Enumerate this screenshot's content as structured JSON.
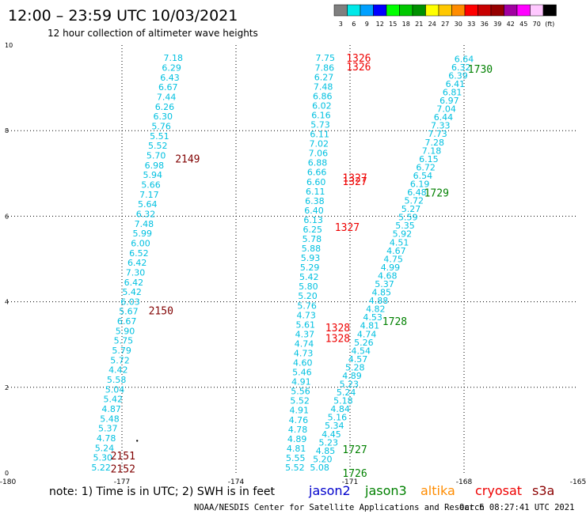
{
  "header": {
    "title": "12:00 – 23:59 UTC 10/03/2021",
    "subtitle": "12 hour collection of altimeter wave heights"
  },
  "colorbar": {
    "unit": "(ft)",
    "bins": [
      {
        "color": "#7f7f7f",
        "label": "3"
      },
      {
        "color": "#00e8e8",
        "label": "6"
      },
      {
        "color": "#00a0ff",
        "label": "9"
      },
      {
        "color": "#0000ff",
        "label": "12"
      },
      {
        "color": "#00ff00",
        "label": "15"
      },
      {
        "color": "#00c800",
        "label": "18"
      },
      {
        "color": "#009000",
        "label": "21"
      },
      {
        "color": "#ffff00",
        "label": "24"
      },
      {
        "color": "#ffc800",
        "label": "27"
      },
      {
        "color": "#ff8c00",
        "label": "30"
      },
      {
        "color": "#ff0000",
        "label": "33"
      },
      {
        "color": "#c80000",
        "label": "36"
      },
      {
        "color": "#960000",
        "label": "39"
      },
      {
        "color": "#a000a0",
        "label": "42"
      },
      {
        "color": "#ff00ff",
        "label": "45"
      },
      {
        "color": "#ffc8ff",
        "label": "70"
      },
      {
        "color": "#000000",
        "label": ""
      }
    ]
  },
  "chart_data": {
    "type": "scatter",
    "x_ticks": [
      "-180",
      "-177",
      "-174",
      "-171",
      "-168",
      "-165"
    ],
    "y_ticks": [
      "0",
      "2",
      "4",
      "6",
      "8",
      "10"
    ],
    "xlim": [
      -180,
      -165
    ],
    "ylim": [
      0,
      10
    ],
    "grid": true,
    "point_color": "#00c0e0",
    "tracks": [
      {
        "satellite": "jason3",
        "direction": "descending",
        "start": {
          "lon": -175.65,
          "lat": 9.7
        },
        "end": {
          "lon": -177.55,
          "lat": 0.13
        },
        "values": [
          "7.18",
          "6.29",
          "6.43",
          "6.67",
          "7.44",
          "6.26",
          "6.30",
          "5.76",
          "5.51",
          "5.52",
          "5.70",
          "6.98",
          "5.94",
          "5.66",
          "7.17",
          "5.64",
          "6.32",
          "7.48",
          "5.99",
          "6.00",
          "6.52",
          "6.42",
          "7.30",
          "6.42",
          "5.42",
          "6.03",
          "5.67",
          "6.67",
          "5.90",
          "5.75",
          "5.79",
          "5.72",
          "4.42",
          "5.58",
          "5.04",
          "5.42",
          "4.87",
          "5.48",
          "5.37",
          "4.78",
          "5.24",
          "5.30",
          "5.22"
        ]
      },
      {
        "satellite": "jason3",
        "direction": "ascending",
        "start": {
          "lon": -171.8,
          "lat": 0.13
        },
        "end": {
          "lon": -168.0,
          "lat": 9.68
        },
        "values": [
          "5.08",
          "5.20",
          "4.85",
          "5.23",
          "4.45",
          "5.34",
          "5.16",
          "4.84",
          "5.18",
          "5.24",
          "5.23",
          "4.89",
          "5.28",
          "4.57",
          "4.54",
          "5.26",
          "4.74",
          "4.81",
          "4.53",
          "4.82",
          "4.88",
          "4.85",
          "5.37",
          "4.68",
          "4.99",
          "4.75",
          "4.67",
          "4.51",
          "5.92",
          "5.35",
          "5.59",
          "5.27",
          "5.72",
          "6.48",
          "6.19",
          "6.54",
          "6.72",
          "6.15",
          "7.18",
          "7.28",
          "7.73",
          "7.33",
          "6.44",
          "7.04",
          "6.97",
          "6.81",
          "6.41",
          "6.39",
          "6.32",
          "6.64"
        ]
      },
      {
        "satellite": "jason2",
        "direction": "descending",
        "start": {
          "lon": -171.65,
          "lat": 9.7
        },
        "end": {
          "lon": -172.45,
          "lat": 0.13
        },
        "values": [
          "7.75",
          "7.86",
          "6.27",
          "7.48",
          "6.86",
          "6.02",
          "6.16",
          "5.73",
          "6.11",
          "7.02",
          "7.06",
          "6.88",
          "6.66",
          "6.60",
          "6.11",
          "6.38",
          "6.40",
          "6.13",
          "6.25",
          "5.78",
          "5.88",
          "5.93",
          "5.29",
          "5.42",
          "5.80",
          "5.20",
          "5.76",
          "4.73",
          "5.61",
          "4.37",
          "4.74",
          "4.73",
          "4.60",
          "5.46",
          "4.91",
          "5.56",
          "5.52",
          "4.91",
          "4.76",
          "4.78",
          "4.89",
          "4.81",
          "5.55",
          "5.52"
        ]
      }
    ],
    "time_labels": [
      {
        "text": "2149",
        "lon": -175.6,
        "lat": 7.35,
        "color": "#800000"
      },
      {
        "text": "2150",
        "lon": -176.3,
        "lat": 3.8,
        "color": "#800000"
      },
      {
        "text": "2151",
        "lon": -177.3,
        "lat": 0.41,
        "color": "#800000"
      },
      {
        "text": "2152",
        "lon": -177.3,
        "lat": 0.1,
        "color": "#800000"
      },
      {
        "text": "1326",
        "lon": -171.1,
        "lat": 9.7,
        "color": "#ee0000"
      },
      {
        "text": "1326",
        "lon": -171.1,
        "lat": 9.5,
        "color": "#ee0000"
      },
      {
        "text": "1327",
        "lon": -171.2,
        "lat": 6.9,
        "color": "#ee0000"
      },
      {
        "text": "1327",
        "lon": -171.2,
        "lat": 6.82,
        "color": "#ee0000"
      },
      {
        "text": "1327",
        "lon": -171.4,
        "lat": 5.75,
        "color": "#ee0000"
      },
      {
        "text": "1328",
        "lon": -171.65,
        "lat": 3.4,
        "color": "#ee0000"
      },
      {
        "text": "1328",
        "lon": -171.65,
        "lat": 3.15,
        "color": "#ee0000"
      },
      {
        "text": "1730",
        "lon": -167.9,
        "lat": 9.45,
        "color": "#008000"
      },
      {
        "text": "1729",
        "lon": -169.05,
        "lat": 6.55,
        "color": "#008000"
      },
      {
        "text": "1728",
        "lon": -170.15,
        "lat": 3.55,
        "color": "#008000"
      },
      {
        "text": "1727",
        "lon": -171.2,
        "lat": 0.55,
        "color": "#008000"
      },
      {
        "text": "1726",
        "lon": -171.2,
        "lat": 0.0,
        "color": "#008000"
      }
    ],
    "markers": [
      {
        "lon": -176.6,
        "lat": 0.75,
        "color": "#000000"
      }
    ]
  },
  "footer": {
    "note": "note:  1) Time is in UTC; 2) SWH is in feet",
    "satellites": [
      {
        "name": "jason2",
        "color": "#0000cc"
      },
      {
        "name": "jason3",
        "color": "#008000"
      },
      {
        "name": "altika",
        "color": "#ff8c00"
      },
      {
        "name": "cryosat",
        "color": "#ee0000"
      },
      {
        "name": "s3a",
        "color": "#8b0000"
      }
    ],
    "credit": "NOAA/NESDIS Center for Satellite Applications and Research",
    "timestamp": "Oct  6 08:27:41 UTC 2021"
  }
}
